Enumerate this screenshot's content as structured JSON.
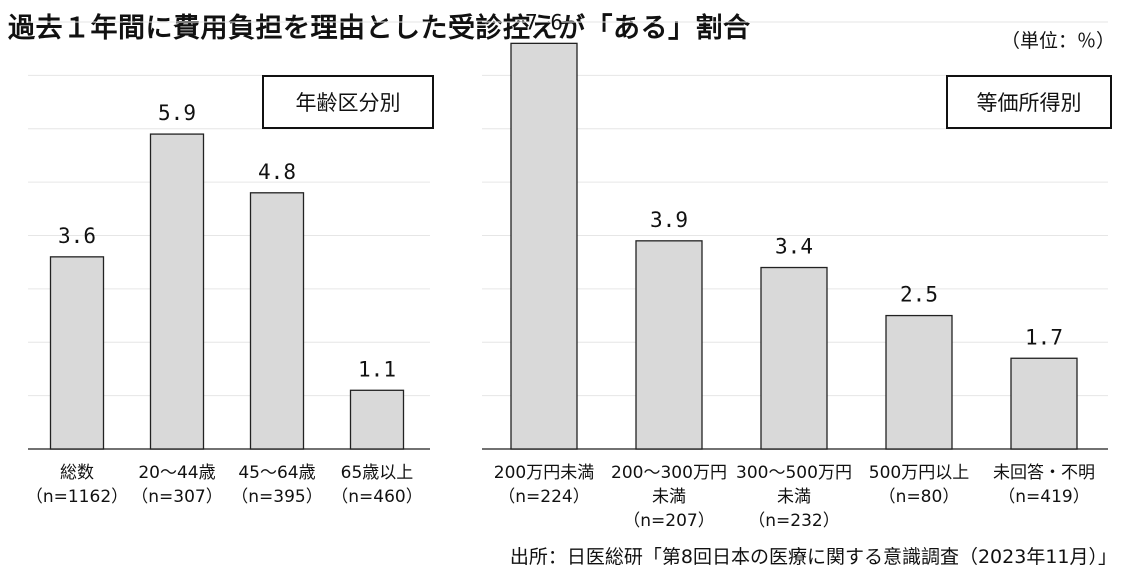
{
  "title": "過去１年間に費用負担を理由とした受診控えが「ある」割合",
  "unit": "（単位：％）",
  "source": "出所：日医総研「第8回日本の医療に関する意識調査（2023年11月）」",
  "chart_data": [
    {
      "type": "bar",
      "title": "年齢区分別",
      "categories": [
        [
          "総数",
          "（n=1162）"
        ],
        [
          "20～44歳",
          "（n=307）"
        ],
        [
          "45～64歳",
          "（n=395）"
        ],
        [
          "65歳以上",
          "（n=460）"
        ]
      ],
      "values": [
        3.6,
        5.9,
        4.8,
        1.1
      ],
      "value_labels": [
        "3.6",
        "5.9",
        "4.8",
        "1.1"
      ],
      "ylim": [
        0,
        8
      ],
      "grid": true,
      "bar_color": "#d9d9d9"
    },
    {
      "type": "bar",
      "title": "等価所得別",
      "categories": [
        [
          "200万円未満",
          "（n=224）"
        ],
        [
          "200～300万円",
          "未満",
          "（n=207）"
        ],
        [
          "300～500万円",
          "未満",
          "（n=232）"
        ],
        [
          "500万円以上",
          "（n=80）"
        ],
        [
          "未回答・不明",
          "（n=419）"
        ]
      ],
      "values": [
        7.6,
        3.9,
        3.4,
        2.5,
        1.7
      ],
      "value_labels": [
        "7.6",
        "3.9",
        "3.4",
        "2.5",
        "1.7"
      ],
      "ylim": [
        0,
        8
      ],
      "grid": true,
      "bar_color": "#d9d9d9"
    }
  ]
}
